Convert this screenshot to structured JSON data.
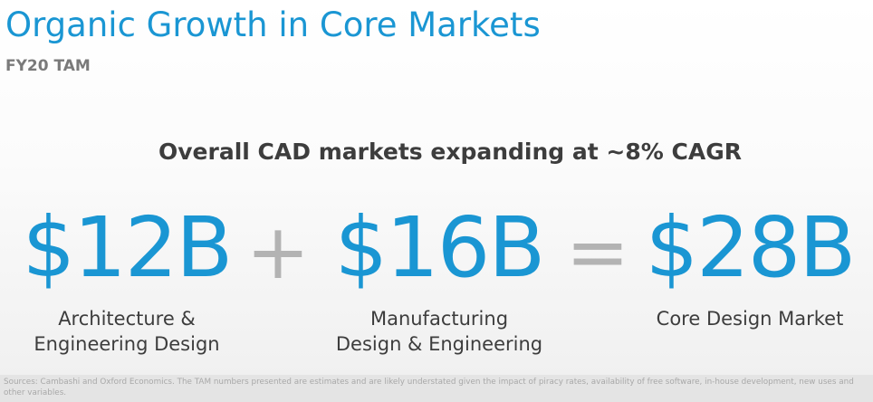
{
  "header": {
    "title": "Organic Growth in Core Markets",
    "subtitle": "FY20 TAM"
  },
  "headline": "Overall CAD markets expanding at ~8% CAGR",
  "equation": {
    "first": {
      "value": "$12B",
      "label_line1": "Architecture &",
      "label_line2": "Engineering Design"
    },
    "plus": "+",
    "second": {
      "value": "$16B",
      "label_line1": "Manufacturing",
      "label_line2": "Design & Engineering"
    },
    "equals": "=",
    "total": {
      "value": "$28B",
      "label_line1": "Core Design Market"
    }
  },
  "footer": {
    "sources": "Sources: Cambashi and Oxford Economics. The TAM numbers presented are estimates and are likely understated given the impact of piracy rates, availability of free software, in-house development, new uses and other variables."
  },
  "colors": {
    "accent": "#1a96d3",
    "operator": "#b3b3b3",
    "text": "#3d3d3d",
    "subtitle": "#7a7a7a"
  }
}
